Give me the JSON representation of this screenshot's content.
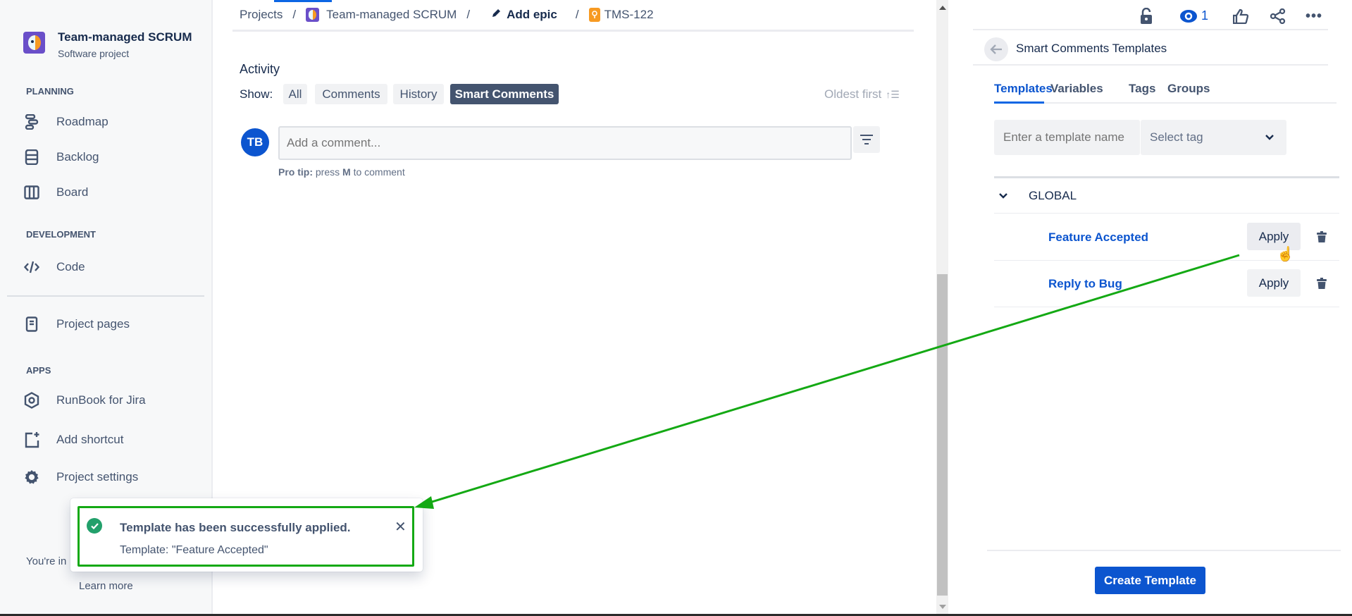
{
  "sidebar": {
    "project_name": "Team-managed SCRUM",
    "project_type": "Software project",
    "sections": {
      "planning": "PLANNING",
      "development": "DEVELOPMENT",
      "apps": "APPS"
    },
    "items": {
      "roadmap": "Roadmap",
      "backlog": "Backlog",
      "board": "Board",
      "code": "Code",
      "project_pages": "Project pages",
      "runbook": "RunBook for Jira",
      "add_shortcut": "Add shortcut",
      "project_settings": "Project settings"
    },
    "footer_text": "You're in",
    "learn_more": "Learn more"
  },
  "breadcrumb": {
    "projects": "Projects",
    "project": "Team-managed SCRUM",
    "add_epic": "Add epic",
    "issue": "TMS-122",
    "sep": "/"
  },
  "activity": {
    "title": "Activity",
    "show_label": "Show:",
    "filters": [
      "All",
      "Comments",
      "History",
      "Smart Comments"
    ],
    "active_filter": "Smart Comments",
    "sort": "Oldest first",
    "avatar_initials": "TB",
    "comment_placeholder": "Add a comment...",
    "pro_tip_bold": "Pro tip:",
    "pro_tip_text1": " press ",
    "pro_tip_key": "M",
    "pro_tip_text2": " to comment"
  },
  "header": {
    "watch_count": "1"
  },
  "panel": {
    "title": "Smart Comments Templates",
    "tabs": [
      "Templates",
      "Variables",
      "Tags",
      "Groups"
    ],
    "active_tab": "Templates",
    "search_placeholder": "Enter a template name",
    "tag_placeholder": "Select tag",
    "group": "GLOBAL",
    "templates": [
      {
        "name": "Feature Accepted",
        "action": "Apply"
      },
      {
        "name": "Reply to Bug",
        "action": "Apply"
      }
    ],
    "create_button": "Create Template"
  },
  "toast": {
    "title": "Template has been successfully applied.",
    "message": "Template: \"Feature Accepted\""
  },
  "colors": {
    "accent": "#0c66e4",
    "link": "#0c55cf",
    "success": "#22a06b",
    "annotation": "#14a914",
    "active_chip": "#44546f"
  }
}
